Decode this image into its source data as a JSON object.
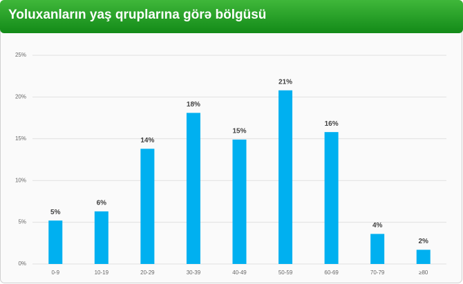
{
  "chart_data": {
    "type": "bar",
    "title": "Yoluxanların yaş qruplarına görə bölgüsü",
    "categories": [
      "0-9",
      "10-19",
      "20-29",
      "30-39",
      "40-49",
      "50-59",
      "60-69",
      "70-79",
      "≥80"
    ],
    "values": [
      5.2,
      6.3,
      13.8,
      18.1,
      14.9,
      20.8,
      15.8,
      3.6,
      1.7
    ],
    "value_labels": [
      "5%",
      "6%",
      "14%",
      "18%",
      "15%",
      "21%",
      "16%",
      "4%",
      "2%"
    ],
    "color": "#00b0f0",
    "ylim": [
      0,
      25
    ],
    "yticks": [
      {
        "value": 0,
        "label": "0%"
      },
      {
        "value": 5,
        "label": "5%"
      },
      {
        "value": 10,
        "label": "10%"
      },
      {
        "value": 15,
        "label": "15%"
      },
      {
        "value": 20,
        "label": "20%"
      },
      {
        "value": 25,
        "label": "25%"
      }
    ],
    "grid": true
  }
}
